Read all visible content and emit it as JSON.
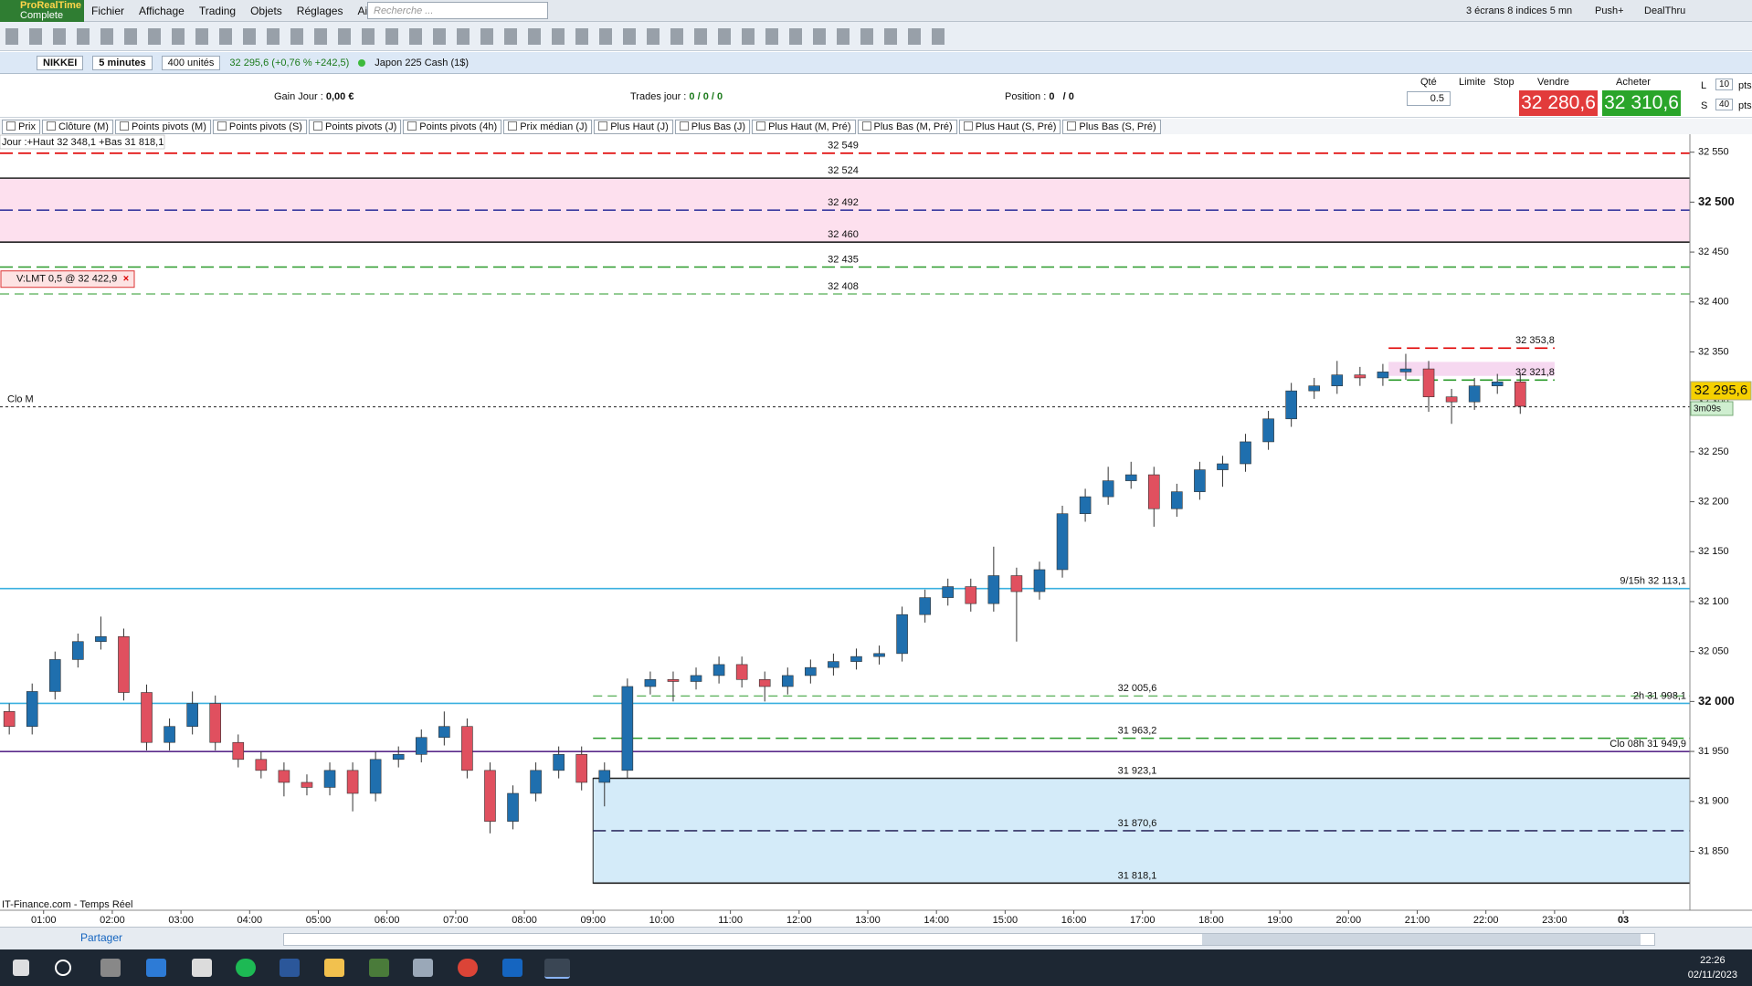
{
  "app": {
    "logo": "ProRealTime",
    "edition": "Complete",
    "menu": [
      "Fichier",
      "Affichage",
      "Trading",
      "Objets",
      "Réglages",
      "Aide"
    ],
    "search_placeholder": "Recherche ...",
    "screens": "3 écrans 8 indices 5 mn",
    "push": "Push+",
    "dealthru": "DealThru"
  },
  "instrument": {
    "symbol": "NIKKEI",
    "interval": "5 minutes",
    "units": "400 unités",
    "quote": "32 295,6 (+0,76 % +242,5)",
    "name": "Japon 225 Cash (1$)"
  },
  "position_bar": {
    "gain_label": "Gain Jour :",
    "gain": "0,00 €",
    "trades_label": "Trades jour :",
    "trades": "0 / 0 / 0",
    "position_label": "Position :",
    "position": "0",
    "position2": "/ 0",
    "qty_label": "Qté",
    "qty": "0.5",
    "limit_label": "Limite",
    "stop_label": "Stop",
    "sell_label": "Vendre",
    "sell": "32 280,6",
    "buy_label": "Acheter",
    "buy": "32 310,6",
    "l_label": "L",
    "l_value": "10",
    "s_label": "S",
    "s_value": "40",
    "pts": "pts"
  },
  "indicators": [
    "Prix",
    "Clôture (M)",
    "Points pivots (M)",
    "Points pivots (S)",
    "Points pivots (J)",
    "Points pivots (4h)",
    "Prix médian (J)",
    "Plus Haut (J)",
    "Plus Bas (J)",
    "Plus Haut (M, Pré)",
    "Plus Bas (M, Pré)",
    "Plus Haut (S, Pré)",
    "Plus Bas (S, Pré)"
  ],
  "chart": {
    "type": "candlestick",
    "day_label": "Jour :+Haut 32 348,1 +Bas 31 818,1",
    "source": "IT-Finance.com - Temps Réel",
    "up_color": "#1f6fae",
    "down_color": "#e0505f",
    "wick_color": "#333333",
    "xlim": [
      0.365,
      24.97
    ],
    "ylim": [
      31791,
      32568
    ],
    "xticks": [
      {
        "value": 1,
        "label": "01:00"
      },
      {
        "value": 2,
        "label": "02:00"
      },
      {
        "value": 3,
        "label": "03:00"
      },
      {
        "value": 4,
        "label": "04:00"
      },
      {
        "value": 5,
        "label": "05:00"
      },
      {
        "value": 6,
        "label": "06:00"
      },
      {
        "value": 7,
        "label": "07:00"
      },
      {
        "value": 8,
        "label": "08:00"
      },
      {
        "value": 9,
        "label": "09:00"
      },
      {
        "value": 10,
        "label": "10:00"
      },
      {
        "value": 11,
        "label": "11:00"
      },
      {
        "value": 12,
        "label": "12:00"
      },
      {
        "value": 13,
        "label": "13:00"
      },
      {
        "value": 14,
        "label": "14:00"
      },
      {
        "value": 15,
        "label": "15:00"
      },
      {
        "value": 16,
        "label": "16:00"
      },
      {
        "value": 17,
        "label": "17:00"
      },
      {
        "value": 18,
        "label": "18:00"
      },
      {
        "value": 19,
        "label": "19:00"
      },
      {
        "value": 20,
        "label": "20:00"
      },
      {
        "value": 21,
        "label": "21:00"
      },
      {
        "value": 22,
        "label": "22:00"
      },
      {
        "value": 23,
        "label": "23:00"
      },
      {
        "value": 24,
        "label": "03"
      }
    ],
    "yticks": [
      {
        "value": 32550,
        "label": "32 550"
      },
      {
        "value": 32500,
        "label": "32 500"
      },
      {
        "value": 32450,
        "label": "32 450"
      },
      {
        "value": 32400,
        "label": "32 400"
      },
      {
        "value": 32350,
        "label": "32 350"
      },
      {
        "value": 32300,
        "label": "32 300"
      },
      {
        "value": 32250,
        "label": "32 250"
      },
      {
        "value": 32200,
        "label": "32 200"
      },
      {
        "value": 32150,
        "label": "32 150"
      },
      {
        "value": 32100,
        "label": "32 100"
      },
      {
        "value": 32050,
        "label": "32 050"
      },
      {
        "value": 32000,
        "label": "32 000"
      },
      {
        "value": 31950,
        "label": "31 950"
      },
      {
        "value": 31900,
        "label": "31 900"
      },
      {
        "value": 31850,
        "label": "31 850"
      }
    ],
    "x": [
      "00:20",
      "00:40",
      "01:00",
      "01:20",
      "01:40",
      "02:00",
      "02:20",
      "02:40",
      "03:00",
      "03:20",
      "03:40",
      "04:00",
      "04:20",
      "04:40",
      "05:00",
      "05:20",
      "05:40",
      "06:00",
      "06:20",
      "06:40",
      "07:00",
      "07:20",
      "07:40",
      "08:00",
      "08:20",
      "08:40",
      "09:00",
      "09:20",
      "09:40",
      "10:00",
      "10:20",
      "10:40",
      "11:00",
      "11:20",
      "11:40",
      "12:00",
      "12:20",
      "12:40",
      "13:00",
      "13:20",
      "13:40",
      "14:00",
      "14:20",
      "14:40",
      "15:00",
      "15:20",
      "15:40",
      "16:00",
      "16:20",
      "16:40",
      "17:00",
      "17:20",
      "17:40",
      "18:00",
      "18:20",
      "18:40",
      "19:00",
      "19:20",
      "19:40",
      "20:00",
      "20:20",
      "20:40",
      "21:00",
      "21:20",
      "21:40",
      "22:00",
      "22:20"
    ],
    "open": [
      31990,
      31975,
      32010,
      32042,
      32060,
      32065,
      32009,
      31959,
      31975,
      31998,
      31959,
      31942,
      31931,
      31919,
      31914,
      31931,
      31908,
      31942,
      31947,
      31964,
      31975,
      31931,
      31880,
      31908,
      31931,
      31947,
      31919,
      31931,
      32015,
      32022,
      32020,
      32026,
      32037,
      32022,
      32015,
      32026,
      32034,
      32040,
      32045,
      32048,
      32087,
      32104,
      32115,
      32098,
      32126,
      32110,
      32132,
      32188,
      32205,
      32221,
      32227,
      32193,
      32210,
      32232,
      32238,
      32260,
      32283,
      32311,
      32316,
      32327,
      32324,
      32330,
      32333,
      32305,
      32300,
      32316,
      32320
    ],
    "high": [
      31998,
      32018,
      32050,
      32068,
      32085,
      32073,
      32017,
      31983,
      32010,
      32006,
      31967,
      31950,
      31939,
      31927,
      31939,
      31939,
      31950,
      31955,
      31972,
      31990,
      31983,
      31939,
      31916,
      31939,
      31955,
      31955,
      31939,
      32023,
      32030,
      32030,
      32034,
      32045,
      32045,
      32030,
      32034,
      32042,
      32048,
      32053,
      32056,
      32095,
      32112,
      32123,
      32123,
      32155,
      32134,
      32140,
      32196,
      32213,
      32235,
      32240,
      32235,
      32218,
      32240,
      32246,
      32268,
      32291,
      32319,
      32324,
      32341,
      32335,
      32338,
      32348.1,
      32341,
      32313,
      32324,
      32328,
      32328
    ],
    "low": [
      31967,
      31967,
      32002,
      32034,
      32052,
      32001,
      31951,
      31951,
      31967,
      31951,
      31934,
      31923,
      31905,
      31906,
      31906,
      31890,
      31900,
      31934,
      31939,
      31956,
      31923,
      31868,
      31872,
      31900,
      31923,
      31911,
      31895,
      31923,
      32007,
      32000,
      32012,
      32018,
      32014,
      32000,
      32007,
      32018,
      32026,
      32032,
      32037,
      32040,
      32079,
      32096,
      32090,
      32090,
      32060,
      32102,
      32124,
      32180,
      32197,
      32213,
      32175,
      32185,
      32202,
      32215,
      32230,
      32252,
      32275,
      32303,
      32308,
      32316,
      32316,
      32322,
      32290,
      32278,
      32292,
      32308,
      32288
    ],
    "close": [
      31975,
      32010,
      32042,
      32060,
      32065,
      32009,
      31959,
      31975,
      31998,
      31959,
      31942,
      31931,
      31919,
      31914,
      31931,
      31908,
      31942,
      31947,
      31964,
      31975,
      31931,
      31880,
      31908,
      31931,
      31947,
      31919,
      31931,
      32015,
      32022,
      32020,
      32026,
      32037,
      32022,
      32015,
      32026,
      32034,
      32040,
      32045,
      32048,
      32087,
      32104,
      32115,
      32098,
      32126,
      32110,
      32132,
      32188,
      32205,
      32221,
      32227,
      32193,
      32210,
      32232,
      32238,
      32260,
      32283,
      32311,
      32316,
      32327,
      32324,
      32330,
      32333,
      32305,
      32300,
      32316,
      32320,
      32295.6
    ],
    "zones": [
      {
        "from": 32460,
        "to": 32524,
        "color": "#fde0ee"
      },
      {
        "from": 32326,
        "to": 32340,
        "color": "#f6d8f0",
        "start": "20:35",
        "end": "23:00"
      },
      {
        "from": 31818.1,
        "to": 31923.1,
        "color": "#d4ebf9",
        "start": "09:00"
      }
    ],
    "levels": [
      {
        "value": 32549,
        "label": "32 549",
        "color": "#e00000",
        "style": "dashed",
        "anchor": "center"
      },
      {
        "value": 32524,
        "label": "32 524",
        "color": "#222222",
        "style": "solid",
        "anchor": "center"
      },
      {
        "value": 32492,
        "label": "32 492",
        "color": "#3a3aa0",
        "style": "dashed",
        "anchor": "center"
      },
      {
        "value": 32460,
        "label": "32 460",
        "color": "#222222",
        "style": "solid",
        "anchor": "center"
      },
      {
        "value": 32435,
        "label": "32 435",
        "color": "#2a9a2a",
        "style": "dashed",
        "anchor": "center"
      },
      {
        "value": 32408,
        "label": "32 408",
        "color": "#2a9a2a",
        "style": "thin",
        "anchor": "center"
      },
      {
        "value": 32353.8,
        "label": "32 353,8",
        "color": "#e00000",
        "style": "dashed",
        "anchor": "end",
        "start": "20:35",
        "end": "23:00"
      },
      {
        "value": 32321.8,
        "label": "32 321,8",
        "color": "#2a9a2a",
        "style": "dashed",
        "anchor": "end",
        "start": "20:35",
        "end": "23:00"
      },
      {
        "value": 32295,
        "label": "Clo M",
        "color": "#222222",
        "style": "dotted",
        "anchor": "left"
      },
      {
        "value": 32113.1,
        "label": "9/15h 32 113,1",
        "color": "#3ab0e0",
        "style": "solid",
        "anchor": "right"
      },
      {
        "value": 32005.6,
        "label": "32 005,6",
        "color": "#2a9a2a",
        "style": "thin",
        "anchor": "mid",
        "start": "09:00"
      },
      {
        "value": 31998.1,
        "label": "2h 31 998,1",
        "color": "#3ab0e0",
        "style": "solid",
        "anchor": "right"
      },
      {
        "value": 31963.2,
        "label": "31 963,2",
        "color": "#2a9a2a",
        "style": "dashed",
        "anchor": "mid",
        "start": "09:00"
      },
      {
        "value": 31949.9,
        "label": "Clo 08h 31 949,9",
        "color": "#5a2a8a",
        "style": "solid",
        "anchor": "right"
      },
      {
        "value": 31923.1,
        "label": "31 923,1",
        "color": "#222222",
        "style": "solid",
        "anchor": "mid",
        "start": "09:00"
      },
      {
        "value": 31870.6,
        "label": "31 870,6",
        "color": "#333366",
        "style": "dashed",
        "anchor": "mid",
        "start": "09:00"
      },
      {
        "value": 31818.1,
        "label": "31 818,1",
        "color": "#222222",
        "style": "solid",
        "anchor": "mid",
        "start": "09:00"
      }
    ],
    "order": {
      "value": 32422.9,
      "label": "V:LMT 0,5 @ 32 422,9"
    },
    "last_price": {
      "value": 32295.6,
      "label": "32 295,6"
    },
    "countdown": "3m09s"
  },
  "bottom_bar": {
    "share": "Partager"
  },
  "taskbar": {
    "time": "22:26",
    "date": "02/11/2023"
  }
}
